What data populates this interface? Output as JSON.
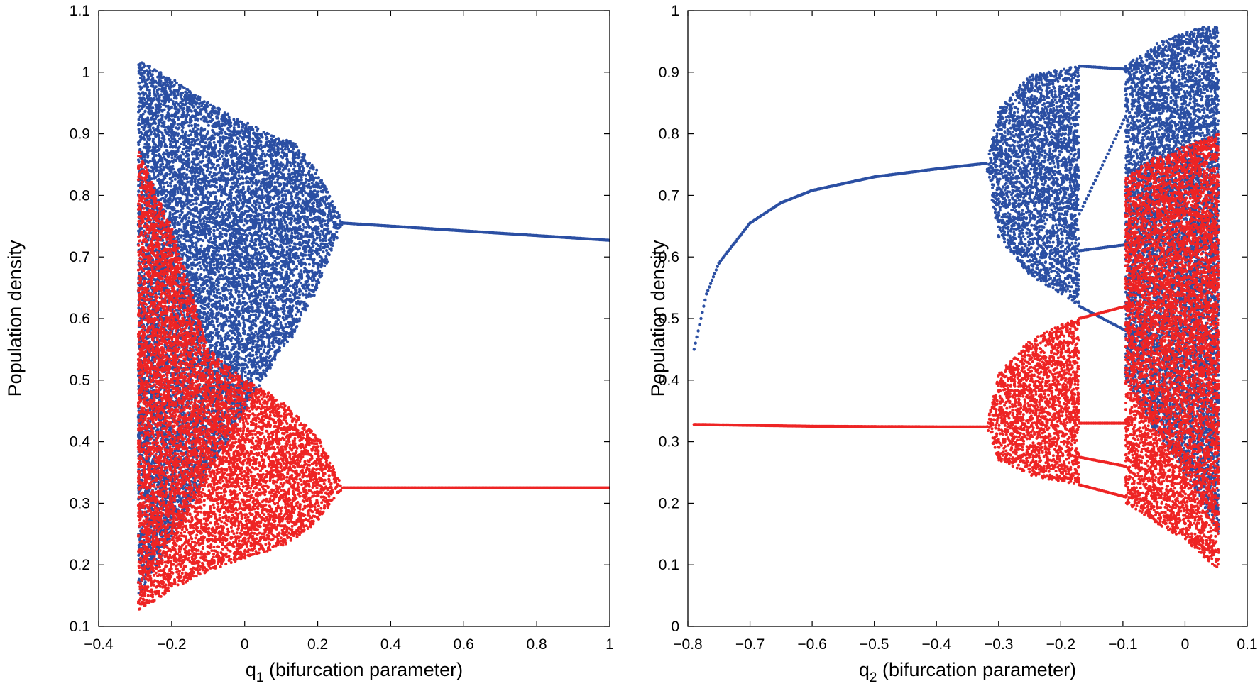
{
  "chart_data": [
    {
      "type": "scatter",
      "xlabel": "q",
      "xlabel_subscript": "1",
      "xlabel_rest": " (bifurcation parameter)",
      "ylabel": "Population density",
      "xlim": [
        -0.4,
        1.0
      ],
      "ylim": [
        0.1,
        1.1
      ],
      "xticks": [
        -0.4,
        -0.2,
        0,
        0.2,
        0.4,
        0.6,
        0.8,
        1
      ],
      "xtick_labels": [
        "−0.4",
        "−0.2",
        "0",
        "0.2",
        "0.4",
        "0.6",
        "0.8",
        "1"
      ],
      "yticks": [
        0.1,
        0.2,
        0.3,
        0.4,
        0.5,
        0.6,
        0.7,
        0.8,
        0.9,
        1,
        1.1
      ],
      "ytick_labels": [
        "0.1",
        "0.2",
        "0.3",
        "0.4",
        "0.5",
        "0.6",
        "0.7",
        "0.8",
        "0.9",
        "1",
        "1.1"
      ],
      "grid": false,
      "series": [
        {
          "color": "#2b4fa3",
          "chaotic_envelope": [
            {
              "x": -0.29,
              "lo": 0.15,
              "hi": 1.02
            },
            {
              "x": -0.2,
              "lo": 0.24,
              "hi": 0.99
            },
            {
              "x": -0.1,
              "lo": 0.35,
              "hi": 0.95
            },
            {
              "x": 0.0,
              "lo": 0.45,
              "hi": 0.92
            },
            {
              "x": 0.1,
              "lo": 0.55,
              "hi": 0.89
            },
            {
              "x": 0.13,
              "lo": 0.57,
              "hi": 0.89
            },
            {
              "x": 0.2,
              "lo": 0.65,
              "hi": 0.84
            },
            {
              "x": 0.27,
              "lo": 0.755,
              "hi": 0.755
            }
          ],
          "fixed_point": [
            {
              "x": 0.27,
              "y": 0.755
            },
            {
              "x": 1.0,
              "y": 0.727
            }
          ]
        },
        {
          "color": "#ee2424",
          "chaotic_envelope": [
            {
              "x": -0.29,
              "lo": 0.125,
              "hi": 0.87
            },
            {
              "x": -0.2,
              "lo": 0.16,
              "hi": 0.75
            },
            {
              "x": -0.1,
              "lo": 0.19,
              "hi": 0.55
            },
            {
              "x": 0.0,
              "lo": 0.21,
              "hi": 0.5
            },
            {
              "x": 0.1,
              "lo": 0.23,
              "hi": 0.47
            },
            {
              "x": 0.13,
              "lo": 0.24,
              "hi": 0.45
            },
            {
              "x": 0.2,
              "lo": 0.27,
              "hi": 0.41
            },
            {
              "x": 0.27,
              "lo": 0.325,
              "hi": 0.325
            }
          ],
          "fixed_point": [
            {
              "x": 0.27,
              "y": 0.325
            },
            {
              "x": 1.0,
              "y": 0.325
            }
          ]
        }
      ]
    },
    {
      "type": "scatter",
      "xlabel": "q",
      "xlabel_subscript": "2",
      "xlabel_rest": " (bifurcation parameter)",
      "ylabel": "Population density",
      "xlim": [
        -0.8,
        0.1
      ],
      "ylim": [
        0,
        1
      ],
      "xticks": [
        -0.8,
        -0.7,
        -0.6,
        -0.5,
        -0.4,
        -0.3,
        -0.2,
        -0.1,
        0,
        0.1
      ],
      "xtick_labels": [
        "−0.8",
        "−0.7",
        "−0.6",
        "−0.5",
        "−0.4",
        "−0.3",
        "−0.2",
        "−0.1",
        "0",
        "0.1"
      ],
      "yticks": [
        0,
        0.1,
        0.2,
        0.3,
        0.4,
        0.5,
        0.6,
        0.7,
        0.8,
        0.9,
        1
      ],
      "ytick_labels": [
        "0",
        "0.1",
        "0.2",
        "0.3",
        "0.4",
        "0.5",
        "0.6",
        "0.7",
        "0.8",
        "0.9",
        "1"
      ],
      "grid": false,
      "series": [
        {
          "color": "#2b4fa3",
          "fixed_point": [
            {
              "x": -0.79,
              "y": 0.45
            },
            {
              "x": -0.77,
              "y": 0.54
            },
            {
              "x": -0.75,
              "y": 0.59
            },
            {
              "x": -0.7,
              "y": 0.655
            },
            {
              "x": -0.65,
              "y": 0.688
            },
            {
              "x": -0.6,
              "y": 0.708
            },
            {
              "x": -0.5,
              "y": 0.73
            },
            {
              "x": -0.4,
              "y": 0.743
            },
            {
              "x": -0.32,
              "y": 0.752
            }
          ],
          "chaotic_envelope": [
            {
              "x": -0.32,
              "lo": 0.752,
              "hi": 0.752
            },
            {
              "x": -0.3,
              "lo": 0.63,
              "hi": 0.84
            },
            {
              "x": -0.25,
              "lo": 0.57,
              "hi": 0.895
            },
            {
              "x": -0.2,
              "lo": 0.54,
              "hi": 0.905
            },
            {
              "x": -0.17,
              "lo": 0.52,
              "hi": 0.91
            }
          ],
          "periodic_window": {
            "x_start": -0.17,
            "x_end": -0.095,
            "branch_start": [
              0.91,
              0.67,
              0.61,
              0.52
            ],
            "branch_end": [
              0.905,
              0.83,
              0.62,
              0.48
            ]
          },
          "chaotic_envelope_2": [
            {
              "x": -0.095,
              "lo": 0.4,
              "hi": 0.91
            },
            {
              "x": -0.05,
              "lo": 0.32,
              "hi": 0.945
            },
            {
              "x": 0.0,
              "lo": 0.25,
              "hi": 0.965
            },
            {
              "x": 0.055,
              "lo": 0.15,
              "hi": 0.98
            }
          ]
        },
        {
          "color": "#ee2424",
          "fixed_point": [
            {
              "x": -0.79,
              "y": 0.328
            },
            {
              "x": -0.6,
              "y": 0.325
            },
            {
              "x": -0.4,
              "y": 0.324
            },
            {
              "x": -0.32,
              "y": 0.324
            }
          ],
          "chaotic_envelope": [
            {
              "x": -0.32,
              "lo": 0.324,
              "hi": 0.324
            },
            {
              "x": -0.3,
              "lo": 0.27,
              "hi": 0.41
            },
            {
              "x": -0.25,
              "lo": 0.245,
              "hi": 0.465
            },
            {
              "x": -0.2,
              "lo": 0.235,
              "hi": 0.49
            },
            {
              "x": -0.17,
              "lo": 0.23,
              "hi": 0.5
            }
          ],
          "periodic_window": {
            "x_start": -0.17,
            "x_end": -0.095,
            "branch_start": [
              0.5,
              0.33,
              0.275,
              0.23
            ],
            "branch_end": [
              0.52,
              0.33,
              0.26,
              0.21
            ]
          },
          "chaotic_envelope_2": [
            {
              "x": -0.095,
              "lo": 0.2,
              "hi": 0.73
            },
            {
              "x": -0.05,
              "lo": 0.17,
              "hi": 0.76
            },
            {
              "x": 0.0,
              "lo": 0.14,
              "hi": 0.78
            },
            {
              "x": 0.055,
              "lo": 0.09,
              "hi": 0.8
            }
          ]
        }
      ]
    }
  ]
}
